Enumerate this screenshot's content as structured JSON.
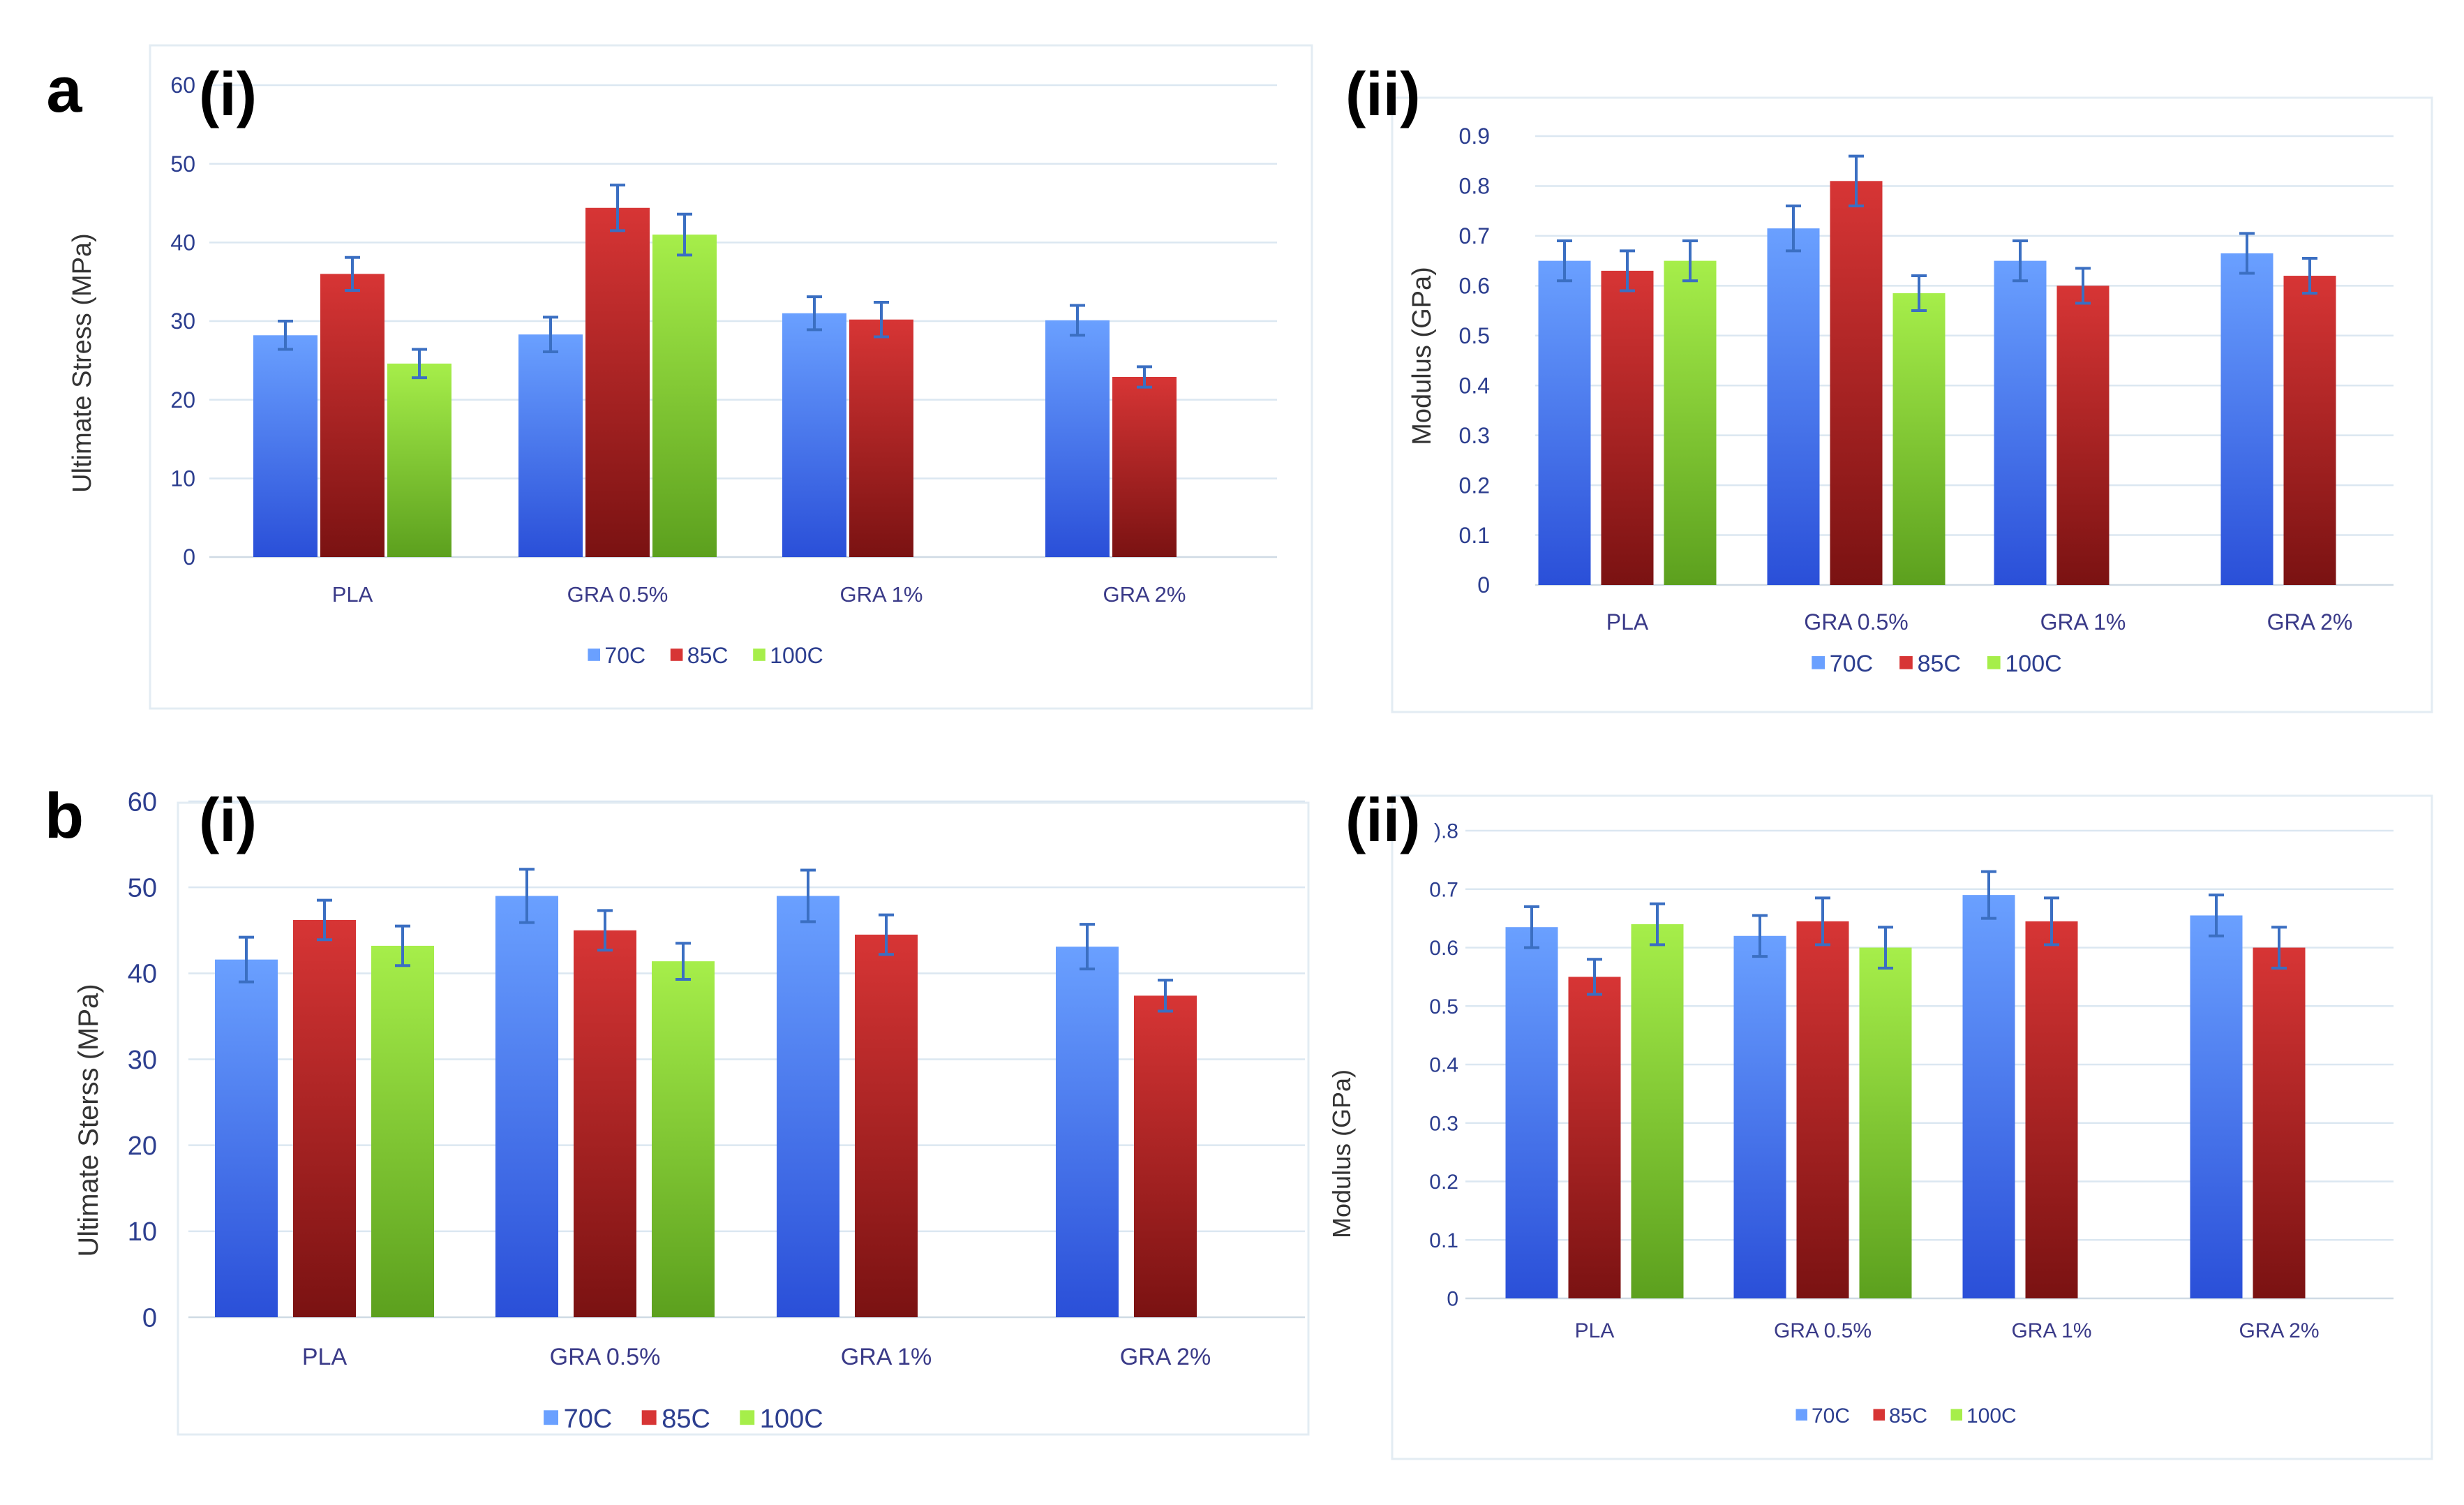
{
  "figure": {
    "row_labels": [
      "a",
      "b"
    ],
    "sub_labels": [
      "(i)",
      "(ii)"
    ]
  },
  "colors": {
    "70C": [
      "#6aa0ff",
      "#2a4fd8"
    ],
    "85C": [
      "#d73535",
      "#7a1212"
    ],
    "100C": [
      "#a6ee4a",
      "#5ca01e"
    ],
    "error_bar": "#3b6fc2"
  },
  "chart_data": [
    {
      "id": "a-i",
      "type": "bar",
      "row_label": "a",
      "sub_label": "(i)",
      "ylabel": "Ultimate Stress (MPa)",
      "ylim": [
        0,
        60
      ],
      "yticks": [
        "0",
        "10",
        "20",
        "30",
        "40",
        "50",
        "60"
      ],
      "categories": [
        "PLA",
        "GRA 0.5%",
        "GRA 1%",
        "GRA 2%"
      ],
      "legend": [
        "70C",
        "85C",
        "100C"
      ],
      "legend_position": "bottom",
      "grid": true,
      "series": [
        {
          "name": "70C",
          "values": [
            28.2,
            28.3,
            31.0,
            30.1
          ],
          "errors": [
            1.8,
            2.2,
            2.1,
            1.9
          ]
        },
        {
          "name": "85C",
          "values": [
            36.0,
            44.4,
            30.2,
            22.9
          ],
          "errors": [
            2.1,
            2.9,
            2.2,
            1.3
          ]
        },
        {
          "name": "100C",
          "values": [
            24.6,
            41.0,
            null,
            null
          ],
          "errors": [
            1.8,
            2.6,
            null,
            null
          ]
        }
      ]
    },
    {
      "id": "a-ii",
      "type": "bar",
      "row_label": "",
      "sub_label": "(ii)",
      "ylabel": "Modulus (GPa)",
      "ylim": [
        0,
        0.9
      ],
      "yticks": [
        "0",
        "0.1",
        "0.2",
        "0.3",
        "0.4",
        "0.5",
        "0.6",
        "0.7",
        "0.8",
        "0.9"
      ],
      "categories": [
        "PLA",
        "GRA 0.5%",
        "GRA 1%",
        "GRA 2%"
      ],
      "legend": [
        "70C",
        "85C",
        "100C"
      ],
      "legend_position": "bottom",
      "grid": true,
      "series": [
        {
          "name": "70C",
          "values": [
            0.65,
            0.715,
            0.65,
            0.665
          ],
          "errors": [
            0.04,
            0.045,
            0.04,
            0.04
          ]
        },
        {
          "name": "85C",
          "values": [
            0.63,
            0.81,
            0.6,
            0.62
          ],
          "errors": [
            0.04,
            0.05,
            0.035,
            0.035
          ]
        },
        {
          "name": "100C",
          "values": [
            0.65,
            0.585,
            null,
            null
          ],
          "errors": [
            0.04,
            0.035,
            null,
            null
          ]
        }
      ]
    },
    {
      "id": "b-i",
      "type": "bar",
      "row_label": "b",
      "sub_label": "(i)",
      "ylabel": "Ultimate Sterss (MPa)",
      "ylim": [
        0,
        60
      ],
      "yticks": [
        "0",
        "10",
        "20",
        "30",
        "40",
        "50",
        "60"
      ],
      "categories": [
        "PLA",
        "GRA 0.5%",
        "GRA 1%",
        "GRA 2%"
      ],
      "legend": [
        "70C",
        "85C",
        "100C"
      ],
      "legend_position": "bottom",
      "grid": true,
      "series": [
        {
          "name": "70C",
          "values": [
            41.6,
            49.0,
            49.0,
            43.1
          ],
          "errors": [
            2.6,
            3.1,
            3.0,
            2.6
          ]
        },
        {
          "name": "85C",
          "values": [
            46.2,
            45.0,
            44.5,
            37.4
          ],
          "errors": [
            2.3,
            2.3,
            2.3,
            1.8
          ]
        },
        {
          "name": "100C",
          "values": [
            43.2,
            41.4,
            null,
            null
          ],
          "errors": [
            2.3,
            2.1,
            null,
            null
          ]
        }
      ]
    },
    {
      "id": "b-ii",
      "type": "bar",
      "row_label": "",
      "sub_label": "(ii)",
      "ylabel": "Modulus (GPa)",
      "ylim": [
        0,
        0.8
      ],
      "yticks": [
        "0",
        "0.1",
        "0.2",
        "0.3",
        "0.4",
        "0.5",
        "0.6",
        "0.7",
        ").8"
      ],
      "categories": [
        "PLA",
        "GRA 0.5%",
        "GRA 1%",
        "GRA 2%"
      ],
      "legend": [
        "70C",
        "85C",
        "100C"
      ],
      "legend_position": "bottom",
      "grid": true,
      "series": [
        {
          "name": "70C",
          "values": [
            0.635,
            0.62,
            0.69,
            0.655
          ],
          "errors": [
            0.035,
            0.035,
            0.04,
            0.035
          ]
        },
        {
          "name": "85C",
          "values": [
            0.55,
            0.645,
            0.645,
            0.6
          ],
          "errors": [
            0.03,
            0.04,
            0.04,
            0.035
          ]
        },
        {
          "name": "100C",
          "values": [
            0.64,
            0.6,
            null,
            null
          ],
          "errors": [
            0.035,
            0.035,
            null,
            null
          ]
        }
      ]
    }
  ]
}
